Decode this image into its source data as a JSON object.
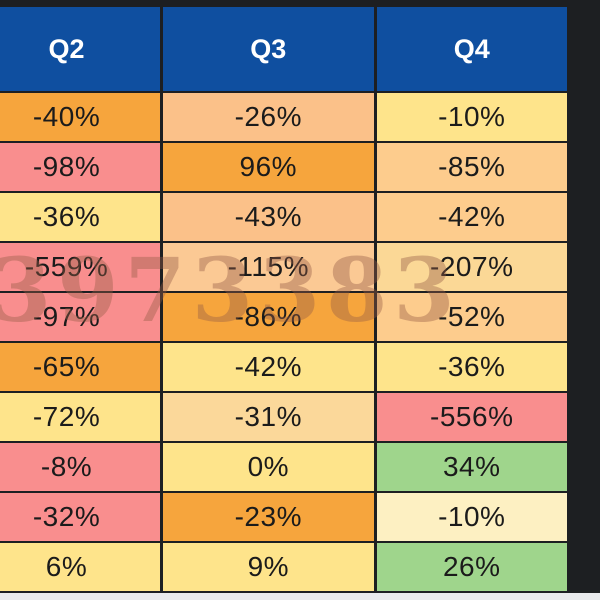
{
  "table": {
    "headers": [
      "Q2",
      "Q3",
      "Q4"
    ],
    "rows": [
      [
        {
          "v": "-40%",
          "c": "#f6a53d"
        },
        {
          "v": "-26%",
          "c": "#fbc189"
        },
        {
          "v": "-10%",
          "c": "#fee48b"
        }
      ],
      [
        {
          "v": "-98%",
          "c": "#f98e8e"
        },
        {
          "v": "96%",
          "c": "#f6a53d"
        },
        {
          "v": "-85%",
          "c": "#fdcc8d"
        }
      ],
      [
        {
          "v": "-36%",
          "c": "#fee48b"
        },
        {
          "v": "-43%",
          "c": "#fbc189"
        },
        {
          "v": "-42%",
          "c": "#fdcc8d"
        }
      ],
      [
        {
          "v": "-559%",
          "c": "#f98e8e"
        },
        {
          "v": "-115%",
          "c": "#fbc994"
        },
        {
          "v": "-207%",
          "c": "#fbd896"
        }
      ],
      [
        {
          "v": "-97%",
          "c": "#f98e8e"
        },
        {
          "v": "-86%",
          "c": "#f6a53d"
        },
        {
          "v": "-52%",
          "c": "#fdcc8d"
        }
      ],
      [
        {
          "v": "-65%",
          "c": "#f6a53d"
        },
        {
          "v": "-42%",
          "c": "#fee48b"
        },
        {
          "v": "-36%",
          "c": "#fee48b"
        }
      ],
      [
        {
          "v": "-72%",
          "c": "#fee48b"
        },
        {
          "v": "-31%",
          "c": "#fbd89a"
        },
        {
          "v": "-556%",
          "c": "#f98e8e"
        }
      ],
      [
        {
          "v": "-8%",
          "c": "#f98e8e"
        },
        {
          "v": "0%",
          "c": "#fee48b"
        },
        {
          "v": "34%",
          "c": "#9fd58c"
        }
      ],
      [
        {
          "v": "-32%",
          "c": "#f98e8e"
        },
        {
          "v": "-23%",
          "c": "#f6a53d"
        },
        {
          "v": "-10%",
          "c": "#fdf0c2"
        }
      ],
      [
        {
          "v": "6%",
          "c": "#fee48b"
        },
        {
          "v": "9%",
          "c": "#fee48b"
        },
        {
          "v": "26%",
          "c": "#9fd58c"
        }
      ]
    ]
  },
  "watermark": {
    "text": "3973383",
    "color": "rgba(150, 92, 70, 0.40)"
  }
}
